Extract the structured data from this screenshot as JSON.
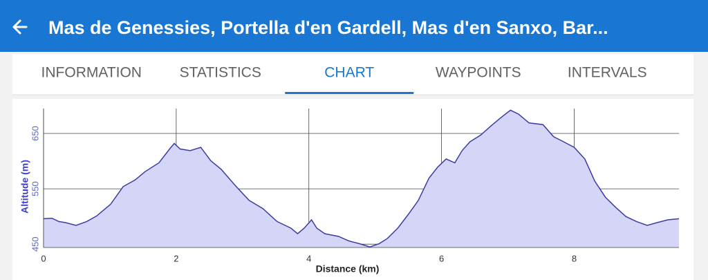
{
  "header": {
    "title": "Mas de Genessies, Portella d'en Gardell, Mas d'en Sanxo, Bar..."
  },
  "tabs": [
    "INFORMATION",
    "STATISTICS",
    "CHART",
    "WAYPOINTS",
    "INTERVALS"
  ],
  "selected_tab": 2,
  "chart_data": {
    "type": "area",
    "x_label": "Distance (km)",
    "y_label": "Altitude (m)",
    "x": [
      0,
      0.125,
      0.23,
      0.33,
      0.49,
      0.65,
      0.8,
      1.01,
      1.2,
      1.38,
      1.53,
      1.74,
      1.9,
      1.97,
      2.06,
      2.21,
      2.37,
      2.52,
      2.68,
      2.89,
      3.1,
      3.31,
      3.52,
      3.73,
      3.83,
      3.93,
      4.04,
      4.12,
      4.24,
      4.45,
      4.6,
      4.76,
      4.92,
      5.06,
      5.18,
      5.34,
      5.5,
      5.65,
      5.81,
      5.94,
      6.07,
      6.2,
      6.31,
      6.43,
      6.59,
      6.75,
      6.9,
      7.04,
      7.16,
      7.32,
      7.53,
      7.69,
      7.84,
      8.0,
      8.16,
      8.31,
      8.47,
      8.63,
      8.78,
      8.94,
      9.1,
      9.25,
      9.41,
      9.58
    ],
    "values": [
      496,
      497,
      491,
      489,
      484,
      491,
      501,
      522,
      554,
      566,
      581,
      597,
      622,
      632,
      622,
      619,
      625,
      601,
      585,
      556,
      529,
      514,
      491,
      479,
      469,
      479,
      494,
      479,
      469,
      464,
      456,
      451,
      445,
      451,
      460,
      479,
      504,
      529,
      569,
      589,
      604,
      597,
      619,
      635,
      647,
      664,
      679,
      692,
      685,
      669,
      666,
      644,
      635,
      625,
      604,
      564,
      535,
      516,
      500,
      491,
      484,
      489,
      494,
      496
    ],
    "color": "#3b3ba3",
    "fill": "#d5d5f8",
    "xlim": [
      0,
      9.58
    ],
    "ylim": [
      444,
      695
    ],
    "xticks": [
      0,
      2,
      4,
      6,
      8
    ],
    "yticks": [
      450,
      550,
      650
    ],
    "grid": true
  }
}
